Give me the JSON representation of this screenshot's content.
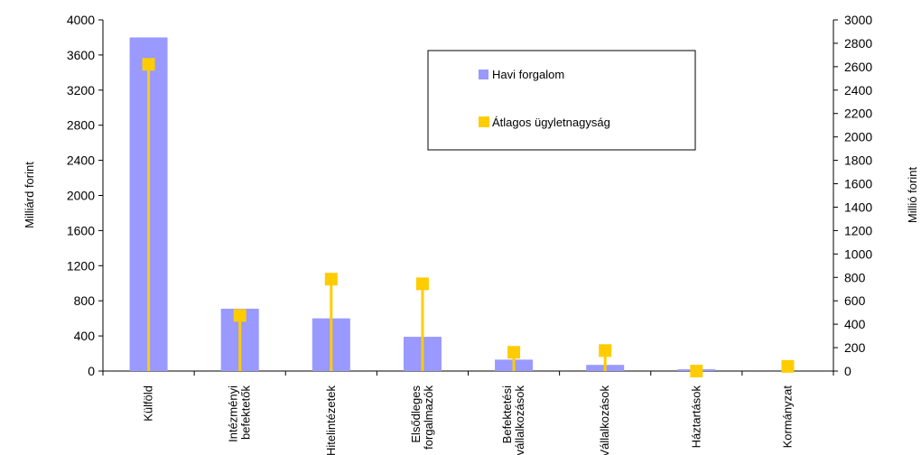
{
  "chart_data": {
    "type": "bar",
    "categories": [
      [
        "Külföld"
      ],
      [
        "Intézményi",
        "befektetők"
      ],
      [
        "Hitelintézetek"
      ],
      [
        "Elsődleges",
        "forgalmazók"
      ],
      [
        "Befektetési",
        "vállalkozások"
      ],
      [
        "Vállalkozások"
      ],
      [
        "Háztartások"
      ],
      [
        "Kormányzat"
      ]
    ],
    "series": [
      {
        "name": "Havi forgalom",
        "kind": "bar",
        "axis": "left",
        "values": [
          3800,
          710,
          600,
          390,
          130,
          70,
          20,
          0
        ]
      },
      {
        "name": "Átlagos ügyletnagyság",
        "kind": "marker",
        "axis": "right",
        "values": [
          2620,
          475,
          785,
          745,
          160,
          175,
          0,
          40
        ]
      }
    ],
    "ylabel": "Milliárd forint",
    "y2label": "Millió forint",
    "ylim": [
      0,
      4000
    ],
    "yticks": [
      0,
      400,
      800,
      1200,
      1600,
      2000,
      2400,
      2800,
      3200,
      3600,
      4000
    ],
    "y2lim": [
      0,
      3000
    ],
    "y2ticks": [
      0,
      200,
      400,
      600,
      800,
      1000,
      1200,
      1400,
      1600,
      1800,
      2000,
      2200,
      2400,
      2600,
      2800,
      3000
    ],
    "legend": "top-right inside plot",
    "grid": false,
    "colors": {
      "bar": "#9999ff",
      "marker": "#ffcc00",
      "stem": "#ffcc00"
    }
  }
}
